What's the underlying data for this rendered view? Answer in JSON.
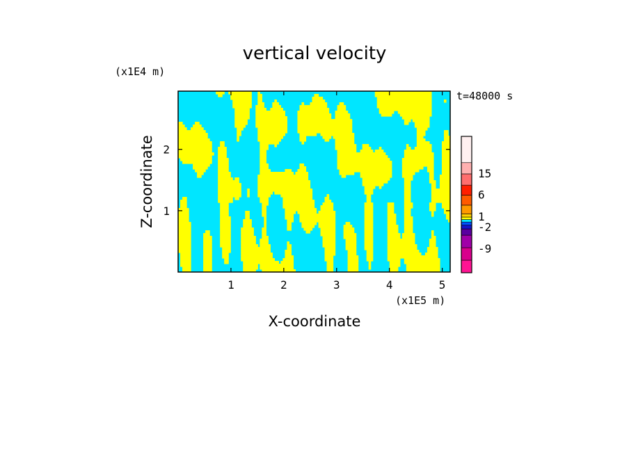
{
  "chart_data": {
    "type": "heatmap",
    "title": "vertical velocity",
    "xlabel": "X-coordinate",
    "ylabel": "Z-coordinate",
    "x_unit": "(x1E5 m)",
    "y_unit": "(x1E4 m)",
    "time_label": "t=48000 s",
    "xlim": [
      0,
      5.15
    ],
    "ylim": [
      0,
      2.95
    ],
    "xticks": [
      1,
      2,
      3,
      4,
      5
    ],
    "yticks": [
      1,
      2
    ],
    "colorbar": {
      "tick_labels": [
        "15",
        "6",
        "1",
        "-2",
        "-9"
      ],
      "levels": [
        {
          "color": "#ff1493"
        },
        {
          "color": "#d8008c"
        },
        {
          "color": "#a000a8"
        },
        {
          "color": "#5a00a0"
        },
        {
          "color": "#1414c8"
        },
        {
          "color": "#0050ff"
        },
        {
          "color": "#00e6ff"
        },
        {
          "color": "#ffff00"
        },
        {
          "color": "#ffd000"
        },
        {
          "color": "#ff9900"
        },
        {
          "color": "#ff5a00"
        },
        {
          "color": "#ff1e00"
        },
        {
          "color": "#ff6e6e"
        },
        {
          "color": "#ffb0b0"
        },
        {
          "color": "#fff0f0"
        }
      ]
    },
    "field_colors": {
      "updraft": "#ffff00",
      "downdraft": "#00e6ff"
    },
    "grid": false
  }
}
